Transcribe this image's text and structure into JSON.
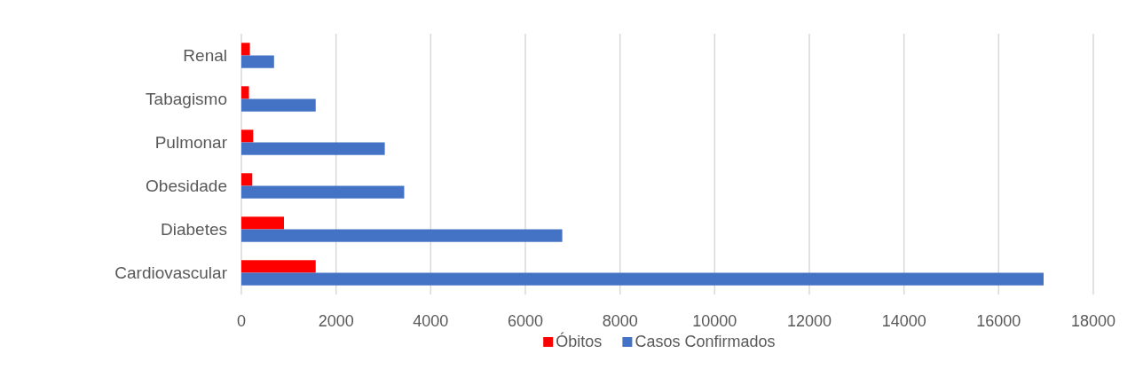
{
  "chart_data": {
    "type": "bar",
    "orientation": "horizontal",
    "categories": [
      "Renal",
      "Tabagismo",
      "Pulmonar",
      "Obesidade",
      "Diabetes",
      "Cardiovascular"
    ],
    "series": [
      {
        "name": "Óbitos",
        "color": "#ff0000",
        "values": [
          180,
          160,
          250,
          230,
          900,
          1570
        ]
      },
      {
        "name": "Casos Confirmados",
        "color": "#4472c4",
        "values": [
          690,
          1570,
          3030,
          3440,
          6780,
          16950
        ]
      }
    ],
    "xlim": [
      0,
      18000
    ],
    "xticks": [
      0,
      2000,
      4000,
      6000,
      8000,
      10000,
      12000,
      14000,
      16000,
      18000
    ],
    "grid": "x",
    "legend": "bottom"
  }
}
